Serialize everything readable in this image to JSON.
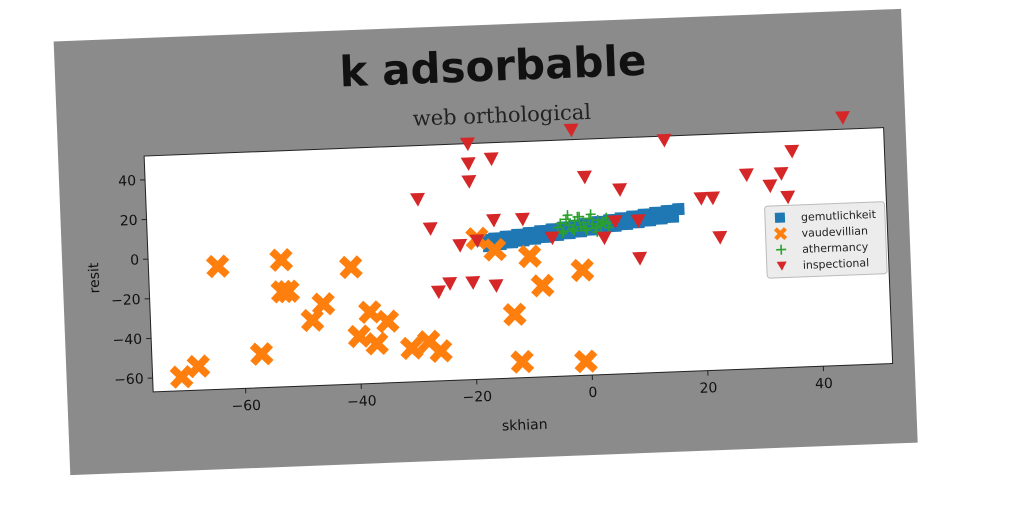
{
  "chart_data": {
    "type": "scatter",
    "title": "k adsorbable",
    "subtitle": "web orthological",
    "xlabel": "skhian",
    "ylabel": "resit",
    "xlim": [
      -76,
      52
    ],
    "ylim": [
      -67,
      52
    ],
    "xticks": [
      "−60",
      "−40",
      "−20",
      "0",
      "20",
      "40"
    ],
    "yticks": [
      "40",
      "20",
      "0",
      "−20",
      "−40",
      "−60"
    ],
    "xtick_values": [
      -60,
      -40,
      -20,
      0,
      20,
      40
    ],
    "ytick_values": [
      40,
      20,
      0,
      -20,
      -40,
      -60
    ],
    "grid": false,
    "legend_position": "center-right",
    "series": [
      {
        "name": "gemutlichkeit",
        "marker": "square",
        "color": "#1f77b4",
        "x": [
          -18,
          -16,
          -14,
          -12,
          -10,
          -8,
          -6,
          -4,
          -2,
          0,
          2,
          4,
          6,
          8,
          10,
          12,
          14,
          16,
          -17,
          -15,
          -13,
          -11,
          -9,
          -7,
          -5,
          -3,
          -1,
          1,
          3,
          5,
          7,
          9,
          11,
          13,
          15
        ],
        "y": [
          3,
          3.7,
          4.4,
          5.1,
          5.8,
          6.5,
          7.2,
          7.9,
          8.6,
          9.3,
          10,
          10.7,
          11.4,
          12.1,
          12.8,
          13.5,
          14.2,
          14.9,
          0,
          0.7,
          1.4,
          2.1,
          2.8,
          3.5,
          4.2,
          4.9,
          5.6,
          6.3,
          7,
          7.7,
          8.4,
          9.1,
          9.8,
          10.5,
          11.2
        ]
      },
      {
        "name": "vaudevillian",
        "marker": "x",
        "color": "#ff7f0e",
        "x": [
          -71,
          -68,
          -64,
          -57,
          -53,
          -53,
          -52,
          -48,
          -46,
          -41,
          -40,
          -38,
          -37,
          -35,
          -31,
          -28,
          -26,
          -19,
          -16,
          -13,
          -12,
          -10,
          -8,
          -1,
          -1
        ],
        "y": [
          -60,
          -55,
          -5,
          -50,
          -3,
          -19,
          -19,
          -34,
          -26,
          -8,
          -43,
          -31,
          -47,
          -36,
          -50,
          -47,
          -52,
          4,
          -2,
          -35,
          -59,
          -6,
          -21,
          -14,
          -60
        ]
      },
      {
        "name": "athermancy",
        "marker": "plus",
        "color": "#2ca02c",
        "x": [
          -5,
          -4.5,
          -4,
          -3.5,
          -3,
          -2.5,
          -2,
          -1.5,
          -1,
          -0.5,
          0,
          0.5,
          1,
          1.5,
          2,
          2.5,
          3,
          3.5,
          4,
          -4.2,
          -3.2,
          -2.2,
          -1.2,
          -0.2,
          0.8,
          1.8,
          2.8,
          3.8
        ],
        "y": [
          8,
          10,
          6,
          12,
          9,
          7,
          11,
          13,
          8,
          10,
          6,
          12,
          9,
          7,
          11,
          8,
          10,
          12,
          9,
          5,
          14,
          6,
          13,
          7,
          14,
          5,
          10,
          7
        ]
      },
      {
        "name": "inspectional",
        "marker": "triangle-down",
        "color": "#d62728",
        "x": [
          -20,
          -20,
          -20,
          -19,
          -16,
          -29,
          -27,
          -16,
          -11,
          -22,
          -24,
          -26,
          -20,
          -16,
          -6,
          -2,
          0,
          3,
          5,
          6,
          9,
          9,
          14,
          20,
          22,
          23,
          28,
          32,
          34,
          35,
          36,
          42,
          45
        ],
        "y": [
          52,
          42,
          33,
          3,
          44,
          25,
          10,
          13,
          13,
          1,
          -18,
          -22,
          -18,
          -20,
          3,
          57,
          33,
          2,
          10,
          26,
          -9,
          10,
          50,
          20,
          20,
          0,
          31,
          25,
          31,
          19,
          42,
          -16,
          58
        ]
      }
    ]
  }
}
